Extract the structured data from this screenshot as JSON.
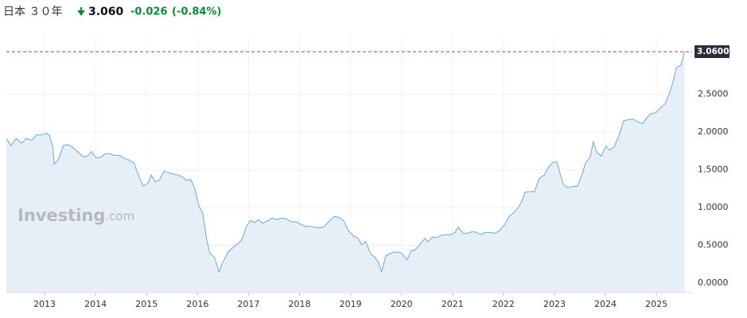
{
  "header": {
    "instrument": "日本 ３０年",
    "price": "3.060",
    "change": "-0.026",
    "change_pct": "(-0.84%)"
  },
  "chart_data": {
    "type": "area",
    "watermark": {
      "brand": "Investing",
      "suffix": ".com"
    },
    "x": [
      2012.25,
      2012.34,
      2012.44,
      2012.55,
      2012.64,
      2012.75,
      2012.84,
      2012.94,
      2013.03,
      2013.09,
      2013.16,
      2013.19,
      2013.27,
      2013.37,
      2013.47,
      2013.56,
      2013.66,
      2013.75,
      2013.84,
      2013.92,
      2014.0,
      2014.09,
      2014.19,
      2014.28,
      2014.37,
      2014.47,
      2014.56,
      2014.65,
      2014.75,
      2014.84,
      2014.93,
      2015.03,
      2015.09,
      2015.17,
      2015.25,
      2015.34,
      2015.43,
      2015.53,
      2015.62,
      2015.71,
      2015.78,
      2015.87,
      2015.95,
      2016.03,
      2016.1,
      2016.18,
      2016.24,
      2016.34,
      2016.42,
      2016.49,
      2016.6,
      2016.71,
      2016.81,
      2016.88,
      2016.96,
      2017.04,
      2017.12,
      2017.2,
      2017.27,
      2017.37,
      2017.46,
      2017.56,
      2017.65,
      2017.74,
      2017.84,
      2017.93,
      2018.02,
      2018.12,
      2018.21,
      2018.3,
      2018.4,
      2018.49,
      2018.58,
      2018.68,
      2018.77,
      2018.87,
      2018.96,
      2019.05,
      2019.15,
      2019.22,
      2019.3,
      2019.4,
      2019.47,
      2019.55,
      2019.61,
      2019.69,
      2019.77,
      2019.86,
      2019.96,
      2020.02,
      2020.11,
      2020.19,
      2020.27,
      2020.36,
      2020.46,
      2020.52,
      2020.61,
      2020.69,
      2020.77,
      2020.86,
      2020.96,
      2021.05,
      2021.11,
      2021.21,
      2021.3,
      2021.39,
      2021.49,
      2021.55,
      2021.64,
      2021.74,
      2021.83,
      2021.92,
      2022.02,
      2022.11,
      2022.2,
      2022.3,
      2022.36,
      2022.42,
      2022.52,
      2022.61,
      2022.7,
      2022.8,
      2022.89,
      2022.98,
      2023.05,
      2023.11,
      2023.17,
      2023.26,
      2023.36,
      2023.45,
      2023.55,
      2023.61,
      2023.7,
      2023.76,
      2023.83,
      2023.92,
      2024.01,
      2024.08,
      2024.17,
      2024.26,
      2024.36,
      2024.45,
      2024.54,
      2024.64,
      2024.73,
      2024.82,
      2024.89,
      2024.98,
      2025.07,
      2025.17,
      2025.26,
      2025.32,
      2025.39,
      2025.48,
      2025.55
    ],
    "values": [
      1.91,
      1.82,
      1.91,
      1.85,
      1.91,
      1.89,
      1.96,
      1.96,
      1.98,
      1.96,
      1.8,
      1.57,
      1.64,
      1.82,
      1.83,
      1.79,
      1.73,
      1.67,
      1.68,
      1.74,
      1.66,
      1.66,
      1.71,
      1.71,
      1.69,
      1.69,
      1.65,
      1.63,
      1.59,
      1.43,
      1.28,
      1.32,
      1.43,
      1.34,
      1.36,
      1.48,
      1.46,
      1.44,
      1.43,
      1.4,
      1.36,
      1.37,
      1.24,
      1.01,
      0.93,
      0.57,
      0.4,
      0.33,
      0.15,
      0.27,
      0.41,
      0.48,
      0.53,
      0.59,
      0.75,
      0.83,
      0.8,
      0.84,
      0.79,
      0.82,
      0.86,
      0.84,
      0.86,
      0.85,
      0.81,
      0.81,
      0.78,
      0.75,
      0.75,
      0.74,
      0.73,
      0.75,
      0.82,
      0.88,
      0.87,
      0.82,
      0.69,
      0.63,
      0.59,
      0.51,
      0.55,
      0.38,
      0.35,
      0.27,
      0.15,
      0.36,
      0.39,
      0.41,
      0.41,
      0.38,
      0.31,
      0.43,
      0.44,
      0.51,
      0.59,
      0.55,
      0.61,
      0.6,
      0.63,
      0.64,
      0.64,
      0.67,
      0.74,
      0.66,
      0.66,
      0.68,
      0.67,
      0.64,
      0.67,
      0.67,
      0.66,
      0.69,
      0.77,
      0.88,
      0.93,
      1.01,
      1.08,
      1.2,
      1.21,
      1.21,
      1.38,
      1.43,
      1.54,
      1.6,
      1.6,
      1.45,
      1.31,
      1.26,
      1.28,
      1.28,
      1.45,
      1.59,
      1.66,
      1.87,
      1.73,
      1.68,
      1.81,
      1.76,
      1.8,
      1.94,
      2.15,
      2.16,
      2.17,
      2.13,
      2.11,
      2.19,
      2.24,
      2.25,
      2.31,
      2.37,
      2.52,
      2.65,
      2.85,
      2.88,
      3.06
    ],
    "color": "#6fa8d6",
    "fill": "#e6eef7",
    "xlim": [
      2012.25,
      2025.7
    ],
    "xticks": [
      2013,
      2014,
      2015,
      2016,
      2017,
      2018,
      2019,
      2020,
      2021,
      2022,
      2023,
      2024,
      2025
    ],
    "ylim": [
      -0.125,
      3.27
    ],
    "yticks": [
      {
        "value": 0,
        "label": "0.0000"
      },
      {
        "value": 0.5,
        "label": "0.5000"
      },
      {
        "value": 1,
        "label": "1.0000"
      },
      {
        "value": 1.5,
        "label": "1.5000"
      },
      {
        "value": 2,
        "label": "2.0000"
      },
      {
        "value": 2.5,
        "label": "2.5000"
      }
    ],
    "last_value": {
      "value": 3.06,
      "label": "3.0600"
    },
    "grid": true
  }
}
